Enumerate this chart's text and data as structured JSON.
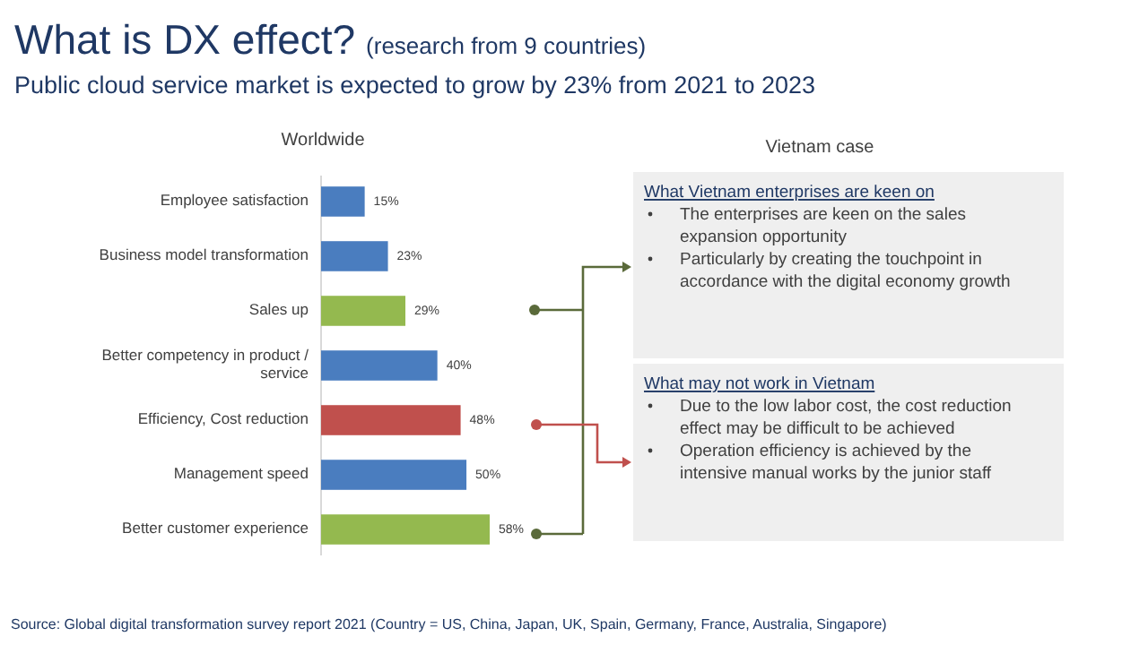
{
  "chart_data": {
    "type": "bar",
    "orientation": "horizontal",
    "title": "What is DX effect?",
    "subtitle": "Public cloud service market is expected to grow by 23% from 2021 to 2023",
    "categories": [
      "Employee satisfaction",
      "Business model transformation",
      "Sales up",
      "Better competency in product / service",
      "Efficiency, Cost reduction",
      "Management speed",
      "Better customer experience"
    ],
    "values": [
      15,
      23,
      29,
      40,
      48,
      50,
      58
    ],
    "colors": [
      "#4a7dbf",
      "#4a7dbf",
      "#94b94f",
      "#4a7dbf",
      "#c0504d",
      "#4a7dbf",
      "#94b94f"
    ],
    "value_labels": [
      "15%",
      "23%",
      "29%",
      "40%",
      "48%",
      "50%",
      "58%"
    ],
    "annotations": [
      "(research from 9 countries)",
      "Worldwide",
      "Vietnam case",
      "What Vietnam enterprises are keen on",
      "The enterprises are keen on the sales expansion opportunity",
      "Particularly by creating the touchpoint in accordance with the digital economy growth",
      "What may not work in Vietnam",
      "Due to the low labor cost, the cost reduction effect may be difficult to be achieved",
      "Operation efficiency is achieved by the intensive manual works by the junior staff",
      "Source: Global digital transformation survey report 2021 (Country = US, China, Japan, UK, Spain, Germany, France, Australia, Singapore)"
    ]
  }
}
